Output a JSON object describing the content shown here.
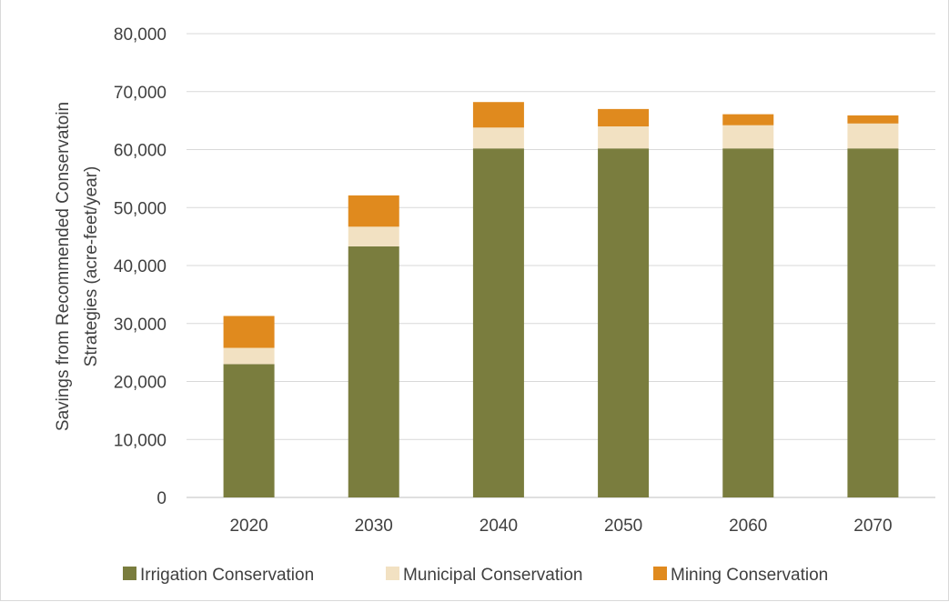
{
  "chart_data": {
    "type": "bar",
    "stacked": true,
    "title": "",
    "ylabel_lines": [
      "Savings from Recommended Conservatoin",
      "Strategies (acre-feet/year)"
    ],
    "xlabel": "",
    "categories": [
      "2020",
      "2030",
      "2040",
      "2050",
      "2060",
      "2070"
    ],
    "series": [
      {
        "name": "Irrigation Conservation",
        "color": "#7a7d3e",
        "values": [
          23000,
          43300,
          60200,
          60200,
          60200,
          60200
        ]
      },
      {
        "name": "Municipal Conservation",
        "color": "#f2e1c2",
        "values": [
          2800,
          3400,
          3600,
          3800,
          4000,
          4300
        ]
      },
      {
        "name": "Mining Conservation",
        "color": "#e08a1e",
        "values": [
          5500,
          5400,
          4400,
          3000,
          1900,
          1400
        ]
      }
    ],
    "ylim": [
      0,
      80000
    ],
    "yticks": [
      0,
      10000,
      20000,
      30000,
      40000,
      50000,
      60000,
      70000,
      80000
    ],
    "ytick_labels": [
      "0",
      "10,000",
      "20,000",
      "30,000",
      "40,000",
      "50,000",
      "60,000",
      "70,000",
      "80,000"
    ],
    "grid": true,
    "legend_position": "bottom"
  }
}
